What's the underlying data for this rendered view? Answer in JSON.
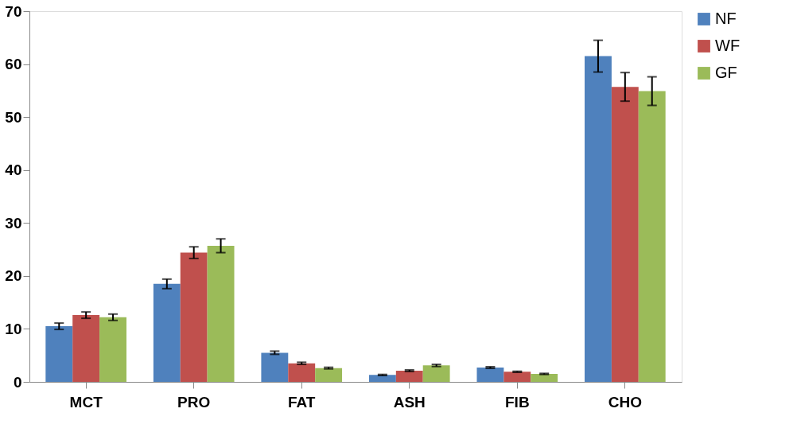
{
  "chart_data": {
    "type": "bar",
    "categories": [
      "MCT",
      "PRO",
      "FAT",
      "ASH",
      "FIB",
      "CHO"
    ],
    "series": [
      {
        "name": "NF",
        "color": "#4f81bd",
        "values": [
          10.5,
          18.5,
          5.5,
          1.3,
          2.7,
          61.5
        ],
        "errors": [
          0.6,
          0.9,
          0.3,
          0.1,
          0.15,
          3.0
        ]
      },
      {
        "name": "WF",
        "color": "#c0504d",
        "values": [
          12.6,
          24.4,
          3.5,
          2.1,
          1.9,
          55.7
        ],
        "errors": [
          0.6,
          1.1,
          0.2,
          0.15,
          0.1,
          2.7
        ]
      },
      {
        "name": "GF",
        "color": "#9bbb59",
        "values": [
          12.2,
          25.7,
          2.6,
          3.1,
          1.5,
          54.9
        ],
        "errors": [
          0.6,
          1.3,
          0.15,
          0.2,
          0.1,
          2.7
        ]
      }
    ],
    "ylim": [
      0,
      70
    ],
    "yticks": [
      0,
      10,
      20,
      30,
      40,
      50,
      60,
      70
    ],
    "grid": false,
    "legend": "right"
  }
}
